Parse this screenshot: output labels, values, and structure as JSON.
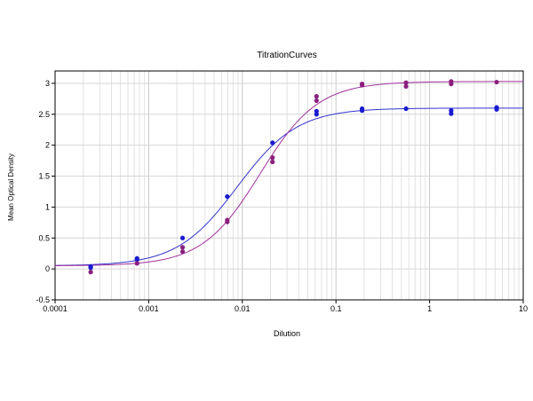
{
  "chart_data": {
    "type": "scatter",
    "title": "TitrationCurves",
    "xlabel": "Dilution",
    "ylabel": "Mean Optical Density",
    "xscale": "log",
    "xlim": [
      0.0001,
      10
    ],
    "ylim": [
      -0.5,
      3.2
    ],
    "grid": true,
    "x_tick_labels": [
      "0.0001",
      "0.001",
      "0.01",
      "0.1",
      "1",
      "10"
    ],
    "x_tick_values": [
      0.0001,
      0.001,
      0.01,
      0.1,
      1,
      10
    ],
    "y_tick_labels": [
      "-0.5",
      "0",
      "0.5",
      "1",
      "1.5",
      "2",
      "2.5",
      "3"
    ],
    "y_tick_values": [
      -0.5,
      0,
      0.5,
      1,
      1.5,
      2,
      2.5,
      3
    ],
    "colors": {
      "blue": "#1a1ad0",
      "purple": "#8b1f7e",
      "blue_curve": "#3333cc",
      "purple_curve": "#a0309a"
    },
    "series": [
      {
        "color": "#1a1ad0",
        "curve_color": "#3333cc",
        "curve": {
          "bottom": 0.05,
          "top": 2.6,
          "ec50": 0.0088,
          "hill": 1.35
        },
        "points": [
          [
            0.00024,
            0.04
          ],
          [
            0.00024,
            0.02
          ],
          [
            0.00075,
            0.17
          ],
          [
            0.00075,
            0.15
          ],
          [
            0.0023,
            0.5
          ],
          [
            0.0069,
            1.17
          ],
          [
            0.021,
            2.04
          ],
          [
            0.062,
            2.55
          ],
          [
            0.062,
            2.5
          ],
          [
            0.19,
            2.59
          ],
          [
            0.19,
            2.56
          ],
          [
            0.56,
            2.59
          ],
          [
            1.7,
            2.56
          ],
          [
            1.7,
            2.51
          ],
          [
            5.2,
            2.61
          ],
          [
            5.2,
            2.58
          ]
        ]
      },
      {
        "color": "#8b1f7e",
        "curve_color": "#a0309a",
        "curve": {
          "bottom": 0.05,
          "top": 3.03,
          "ec50": 0.0155,
          "hill": 1.4
        },
        "points": [
          [
            0.00024,
            -0.05
          ],
          [
            0.00075,
            0.09
          ],
          [
            0.0023,
            0.35
          ],
          [
            0.0023,
            0.28
          ],
          [
            0.0069,
            0.79
          ],
          [
            0.0069,
            0.76
          ],
          [
            0.021,
            1.8
          ],
          [
            0.021,
            1.73
          ],
          [
            0.062,
            2.79
          ],
          [
            0.062,
            2.72
          ],
          [
            0.19,
            2.99
          ],
          [
            0.19,
            2.97
          ],
          [
            0.56,
            3.01
          ],
          [
            0.56,
            2.95
          ],
          [
            1.7,
            3.03
          ],
          [
            1.7,
            2.99
          ],
          [
            5.2,
            3.02
          ]
        ]
      }
    ]
  }
}
